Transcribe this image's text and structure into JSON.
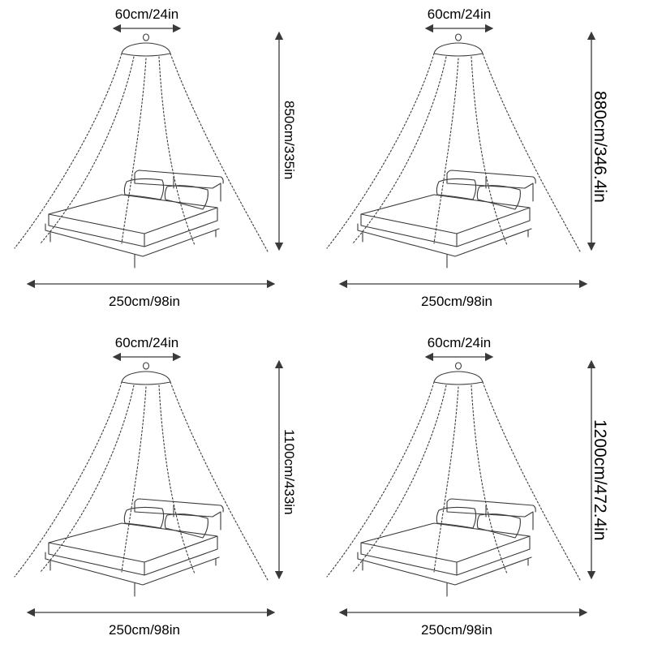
{
  "panels": [
    {
      "top_label": "60cm/24in",
      "height_label": "850cm/335in",
      "bottom_label": "250cm/98in",
      "height_style": "normal"
    },
    {
      "top_label": "60cm/24in",
      "height_label": "880cm/346.4in",
      "bottom_label": "250cm/98in",
      "height_style": "big"
    },
    {
      "top_label": "60cm/24in",
      "height_label": "1100cm/433in",
      "bottom_label": "250cm/98in",
      "height_style": "normal"
    },
    {
      "top_label": "60cm/24in",
      "height_label": "1200cm/472.4in",
      "bottom_label": "250cm/98in",
      "height_style": "big"
    }
  ],
  "colors": {
    "line": "#3a3a3a",
    "text": "#000000",
    "background": "#ffffff"
  }
}
